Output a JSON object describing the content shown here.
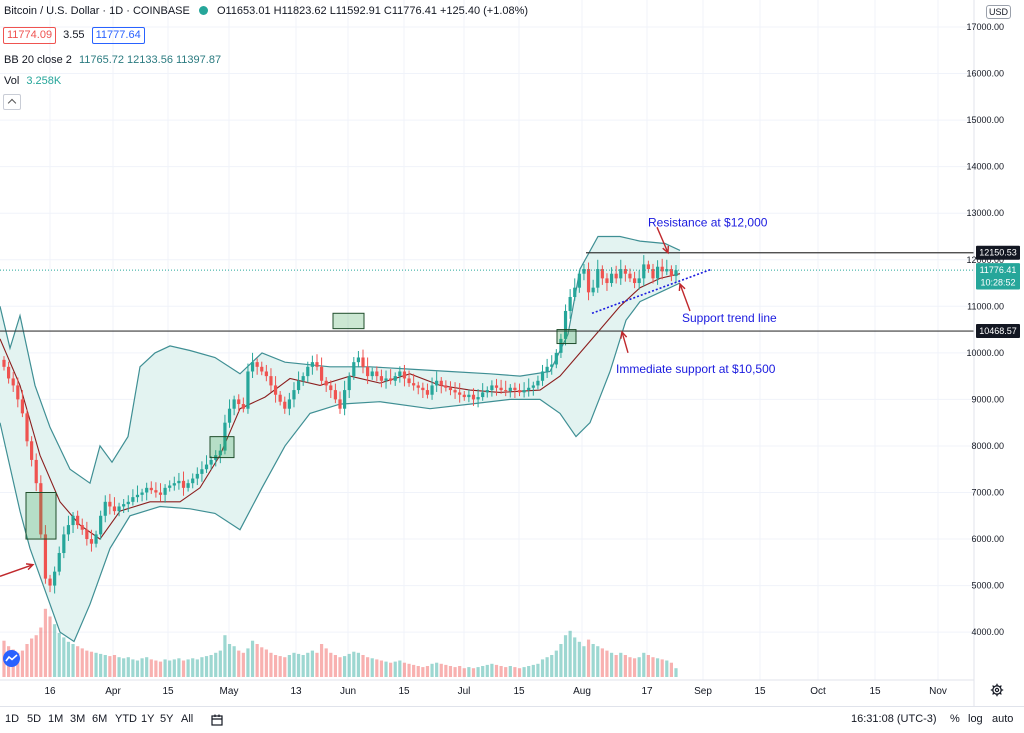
{
  "header": {
    "symbol": "Bitcoin / U.S. Dollar · 1D · COINBASE",
    "ohlc": "O11653.01 H11823.62 L11592.91 C11776.41 +125.40 (+1.08%)",
    "bid": "11774.09",
    "spread": "3.55",
    "ask": "11777.64",
    "bb_label": "BB 20 close 2",
    "bb_values": "11765.72 12133.56 11397.87",
    "vol_label": "Vol",
    "vol_value": "3.258K",
    "currency": "USD"
  },
  "toolbar": {
    "ranges": [
      "1D",
      "5D",
      "1M",
      "3M",
      "6M",
      "YTD",
      "1Y",
      "5Y",
      "All"
    ],
    "time": "16:31:08 (UTC-3)",
    "percent": "%",
    "log": "log",
    "auto": "auto"
  },
  "colors": {
    "up": "#26a69a",
    "down": "#ef5350",
    "bb_fill": "#e3f3f1",
    "bb_band": "#3f8f94",
    "bb_basis": "#8b1e1e",
    "annotation": "#1a1adf",
    "arrow": "#c0282c",
    "box": "#2e9e4b"
  },
  "chart_data": {
    "type": "candlestick",
    "title": "Bitcoin / U.S. Dollar · 1D · COINBASE",
    "ylim": [
      3000,
      17500
    ],
    "y_ticks": [
      4000,
      5000,
      6000,
      7000,
      8000,
      9000,
      10000,
      11000,
      12000,
      13000,
      14000,
      15000,
      16000,
      17000
    ],
    "y_tick_labels": [
      "4000.00",
      "5000.00",
      "6000.00",
      "7000.00",
      "8000.00",
      "9000.00",
      "10000.00",
      "11000.00",
      "12000.00",
      "13000.00",
      "14000.00",
      "15000.00",
      "16000.00",
      "17000.00"
    ],
    "x_labels": [
      "16",
      "Apr",
      "15",
      "May",
      "13",
      "Jun",
      "15",
      "Jul",
      "15",
      "Aug",
      "17",
      "Sep",
      "15",
      "Oct",
      "15",
      "Nov"
    ],
    "price_tags": [
      {
        "label": "12150.53",
        "value": 12150.53,
        "style": "line"
      },
      {
        "label": "11776.41",
        "value": 11776.41,
        "style": "last"
      },
      {
        "label": "10:28:52",
        "value": 11510,
        "style": "countdown"
      },
      {
        "label": "10468.57",
        "value": 10468.57,
        "style": "line"
      }
    ],
    "last_price": 11776.41,
    "closes": [
      9700,
      9450,
      9300,
      9000,
      8700,
      8100,
      7700,
      7200,
      6100,
      5150,
      5000,
      5300,
      5700,
      6100,
      6300,
      6500,
      6300,
      6200,
      6000,
      5900,
      6100,
      6500,
      6800,
      6700,
      6600,
      6700,
      6750,
      6800,
      6900,
      6950,
      7000,
      7100,
      7050,
      7000,
      6950,
      7100,
      7150,
      7200,
      7250,
      7100,
      7200,
      7300,
      7400,
      7500,
      7600,
      7700,
      7800,
      7900,
      8500,
      8800,
      9000,
      8900,
      8800,
      9600,
      9800,
      9700,
      9600,
      9500,
      9300,
      9100,
      8950,
      8800,
      9000,
      9200,
      9400,
      9500,
      9700,
      9800,
      9700,
      9400,
      9300,
      9200,
      9000,
      8800,
      9200,
      9500,
      9800,
      9900,
      9700,
      9500,
      9600,
      9500,
      9400,
      9450,
      9400,
      9500,
      9600,
      9450,
      9350,
      9300,
      9250,
      9200,
      9100,
      9300,
      9400,
      9300,
      9250,
      9200,
      9150,
      9100,
      9050,
      9100,
      9000,
      9050,
      9150,
      9200,
      9300,
      9250,
      9200,
      9180,
      9250,
      9200,
      9150,
      9200,
      9250,
      9300,
      9400,
      9600,
      9700,
      9750,
      10000,
      10300,
      10900,
      11200,
      11400,
      11700,
      11800,
      11300,
      11400,
      11800,
      11600,
      11500,
      11700,
      11600,
      11800,
      11700,
      11600,
      11500,
      11600,
      11900,
      11800,
      11600,
      11850,
      11750,
      11800,
      11650,
      11776
    ],
    "volumes": [
      0.33,
      0.28,
      0.25,
      0.22,
      0.24,
      0.3,
      0.35,
      0.38,
      0.45,
      0.62,
      0.55,
      0.48,
      0.4,
      0.36,
      0.32,
      0.3,
      0.28,
      0.26,
      0.24,
      0.23,
      0.22,
      0.21,
      0.2,
      0.19,
      0.2,
      0.18,
      0.17,
      0.18,
      0.16,
      0.15,
      0.17,
      0.18,
      0.16,
      0.15,
      0.14,
      0.16,
      0.15,
      0.16,
      0.17,
      0.15,
      0.16,
      0.17,
      0.16,
      0.18,
      0.19,
      0.2,
      0.22,
      0.24,
      0.38,
      0.3,
      0.28,
      0.24,
      0.22,
      0.26,
      0.33,
      0.3,
      0.27,
      0.25,
      0.22,
      0.2,
      0.19,
      0.18,
      0.2,
      0.22,
      0.21,
      0.2,
      0.22,
      0.24,
      0.22,
      0.3,
      0.26,
      0.22,
      0.2,
      0.18,
      0.19,
      0.21,
      0.23,
      0.22,
      0.2,
      0.18,
      0.17,
      0.16,
      0.15,
      0.14,
      0.13,
      0.14,
      0.15,
      0.13,
      0.12,
      0.11,
      0.1,
      0.09,
      0.1,
      0.12,
      0.13,
      0.12,
      0.11,
      0.1,
      0.09,
      0.1,
      0.08,
      0.09,
      0.08,
      0.09,
      0.1,
      0.11,
      0.12,
      0.11,
      0.1,
      0.09,
      0.1,
      0.09,
      0.08,
      0.09,
      0.1,
      0.11,
      0.12,
      0.16,
      0.18,
      0.2,
      0.24,
      0.3,
      0.38,
      0.42,
      0.36,
      0.32,
      0.28,
      0.34,
      0.3,
      0.28,
      0.26,
      0.24,
      0.22,
      0.2,
      0.22,
      0.2,
      0.18,
      0.17,
      0.18,
      0.22,
      0.2,
      0.18,
      0.17,
      0.16,
      0.15,
      0.13,
      0.08
    ],
    "bollinger": {
      "upper": [
        [
          0,
          11000
        ],
        [
          10,
          10100
        ],
        [
          20,
          10800
        ],
        [
          35,
          9300
        ],
        [
          50,
          8400
        ],
        [
          70,
          7500
        ],
        [
          90,
          7200
        ],
        [
          100,
          8000
        ],
        [
          112,
          7650
        ],
        [
          128,
          8200
        ],
        [
          140,
          9700
        ],
        [
          155,
          10000
        ],
        [
          170,
          10150
        ],
        [
          190,
          10050
        ],
        [
          215,
          9900
        ],
        [
          240,
          9550
        ],
        [
          262,
          10000
        ],
        [
          285,
          9800
        ],
        [
          330,
          9700
        ],
        [
          370,
          9700
        ],
        [
          410,
          9650
        ],
        [
          450,
          9600
        ],
        [
          490,
          9550
        ],
        [
          520,
          9500
        ],
        [
          550,
          9600
        ],
        [
          568,
          10400
        ],
        [
          580,
          11800
        ],
        [
          598,
          12500
        ],
        [
          620,
          12500
        ],
        [
          640,
          12400
        ],
        [
          665,
          12350
        ],
        [
          680,
          12200
        ]
      ],
      "lower": [
        [
          0,
          8500
        ],
        [
          20,
          6600
        ],
        [
          30,
          5800
        ],
        [
          50,
          4600
        ],
        [
          60,
          4000
        ],
        [
          74,
          3800
        ],
        [
          90,
          4600
        ],
        [
          110,
          5800
        ],
        [
          130,
          6500
        ],
        [
          160,
          6700
        ],
        [
          190,
          6650
        ],
        [
          215,
          6550
        ],
        [
          240,
          6200
        ],
        [
          262,
          7100
        ],
        [
          285,
          8000
        ],
        [
          310,
          8700
        ],
        [
          340,
          8900
        ],
        [
          380,
          8950
        ],
        [
          430,
          8800
        ],
        [
          470,
          8900
        ],
        [
          510,
          9000
        ],
        [
          540,
          9000
        ],
        [
          560,
          8700
        ],
        [
          576,
          8200
        ],
        [
          590,
          8500
        ],
        [
          610,
          9600
        ],
        [
          626,
          10700
        ],
        [
          640,
          11100
        ],
        [
          660,
          11300
        ],
        [
          680,
          11500
        ]
      ],
      "basis": [
        [
          0,
          10300
        ],
        [
          20,
          9300
        ],
        [
          40,
          7800
        ],
        [
          60,
          6800
        ],
        [
          80,
          6300
        ],
        [
          100,
          6000
        ],
        [
          120,
          6600
        ],
        [
          150,
          6800
        ],
        [
          180,
          6800
        ],
        [
          200,
          7100
        ],
        [
          220,
          7800
        ],
        [
          240,
          8800
        ],
        [
          265,
          9050
        ],
        [
          290,
          9450
        ],
        [
          320,
          9300
        ],
        [
          350,
          9500
        ],
        [
          380,
          9350
        ],
        [
          410,
          9550
        ],
        [
          440,
          9300
        ],
        [
          470,
          9200
        ],
        [
          500,
          9150
        ],
        [
          540,
          9200
        ],
        [
          560,
          9500
        ],
        [
          580,
          10000
        ],
        [
          600,
          10500
        ],
        [
          620,
          11000
        ],
        [
          640,
          11400
        ],
        [
          660,
          11600
        ],
        [
          680,
          11700
        ]
      ]
    },
    "annotations": [
      {
        "text": "Resistance at $12,000",
        "value": 12800
      },
      {
        "text": "Support trend line",
        "value": 10750
      },
      {
        "text": "Immediate support at $10,500",
        "value": 9650
      }
    ],
    "horizontal_levels": [
      12150.53,
      10468.57
    ]
  }
}
